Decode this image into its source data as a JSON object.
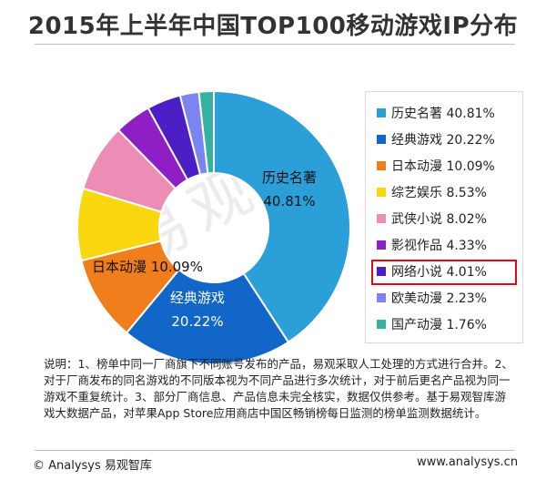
{
  "title": "2015年上半年中国TOP100移动游戏IP分布",
  "watermark": "易观智",
  "chart_data": {
    "type": "pie",
    "donut": true,
    "title": "2015年上半年中国TOP100移动游戏IP分布",
    "legend_position": "right",
    "categories": [
      "历史名著",
      "经典游戏",
      "日本动漫",
      "综艺娱乐",
      "武侠小说",
      "影视作品",
      "网络小说",
      "欧美动漫",
      "国产动漫"
    ],
    "values": [
      40.81,
      20.22,
      10.09,
      8.53,
      8.02,
      4.33,
      4.01,
      2.23,
      1.76
    ],
    "colors": [
      "#2a9fd8",
      "#1166c7",
      "#f07e1c",
      "#fad70f",
      "#ec8db6",
      "#8f1fc4",
      "#4b1fc4",
      "#7b84f0",
      "#35b0a3"
    ],
    "value_labels": [
      "40.81%",
      "20.22%",
      "10.09%",
      "8.53%",
      "8.02%",
      "4.33%",
      "4.01%",
      "2.23%",
      "1.76%"
    ],
    "highlighted_category": "网络小说"
  },
  "slice_labels": {
    "history_name": "历史名著",
    "history_value": "40.81%",
    "classic_name": "经典游戏",
    "classic_value": "20.22%",
    "japan_label": "日本动漫 10.09%"
  },
  "legend": [
    "历史名著 40.81%",
    "经典游戏 20.22%",
    "日本动漫 10.09%",
    "综艺娱乐 8.53%",
    "武侠小说 8.02%",
    "影视作品 4.33%",
    "网络小说 4.01%",
    "欧美动漫 2.23%",
    "国产动漫 1.76%"
  ],
  "notes": "说明：1、榜单中同一厂商旗下不同账号发布的产品，易观采取人工处理的方式进行合并。2、对于厂商发布的同名游戏的不同版本视为不同产品进行多次统计，对于前后更名产品视为同一游戏不重复统计。3、部分厂商信息、产品信息未完全核实，数据仅供参考。基于易观智库游戏大数据产品，对苹果App Store应用商店中国区畅销榜每日监测的榜单监测数据统计。",
  "footer": {
    "left": "© Analysys 易观智库",
    "right": "www.analysys.cn"
  }
}
